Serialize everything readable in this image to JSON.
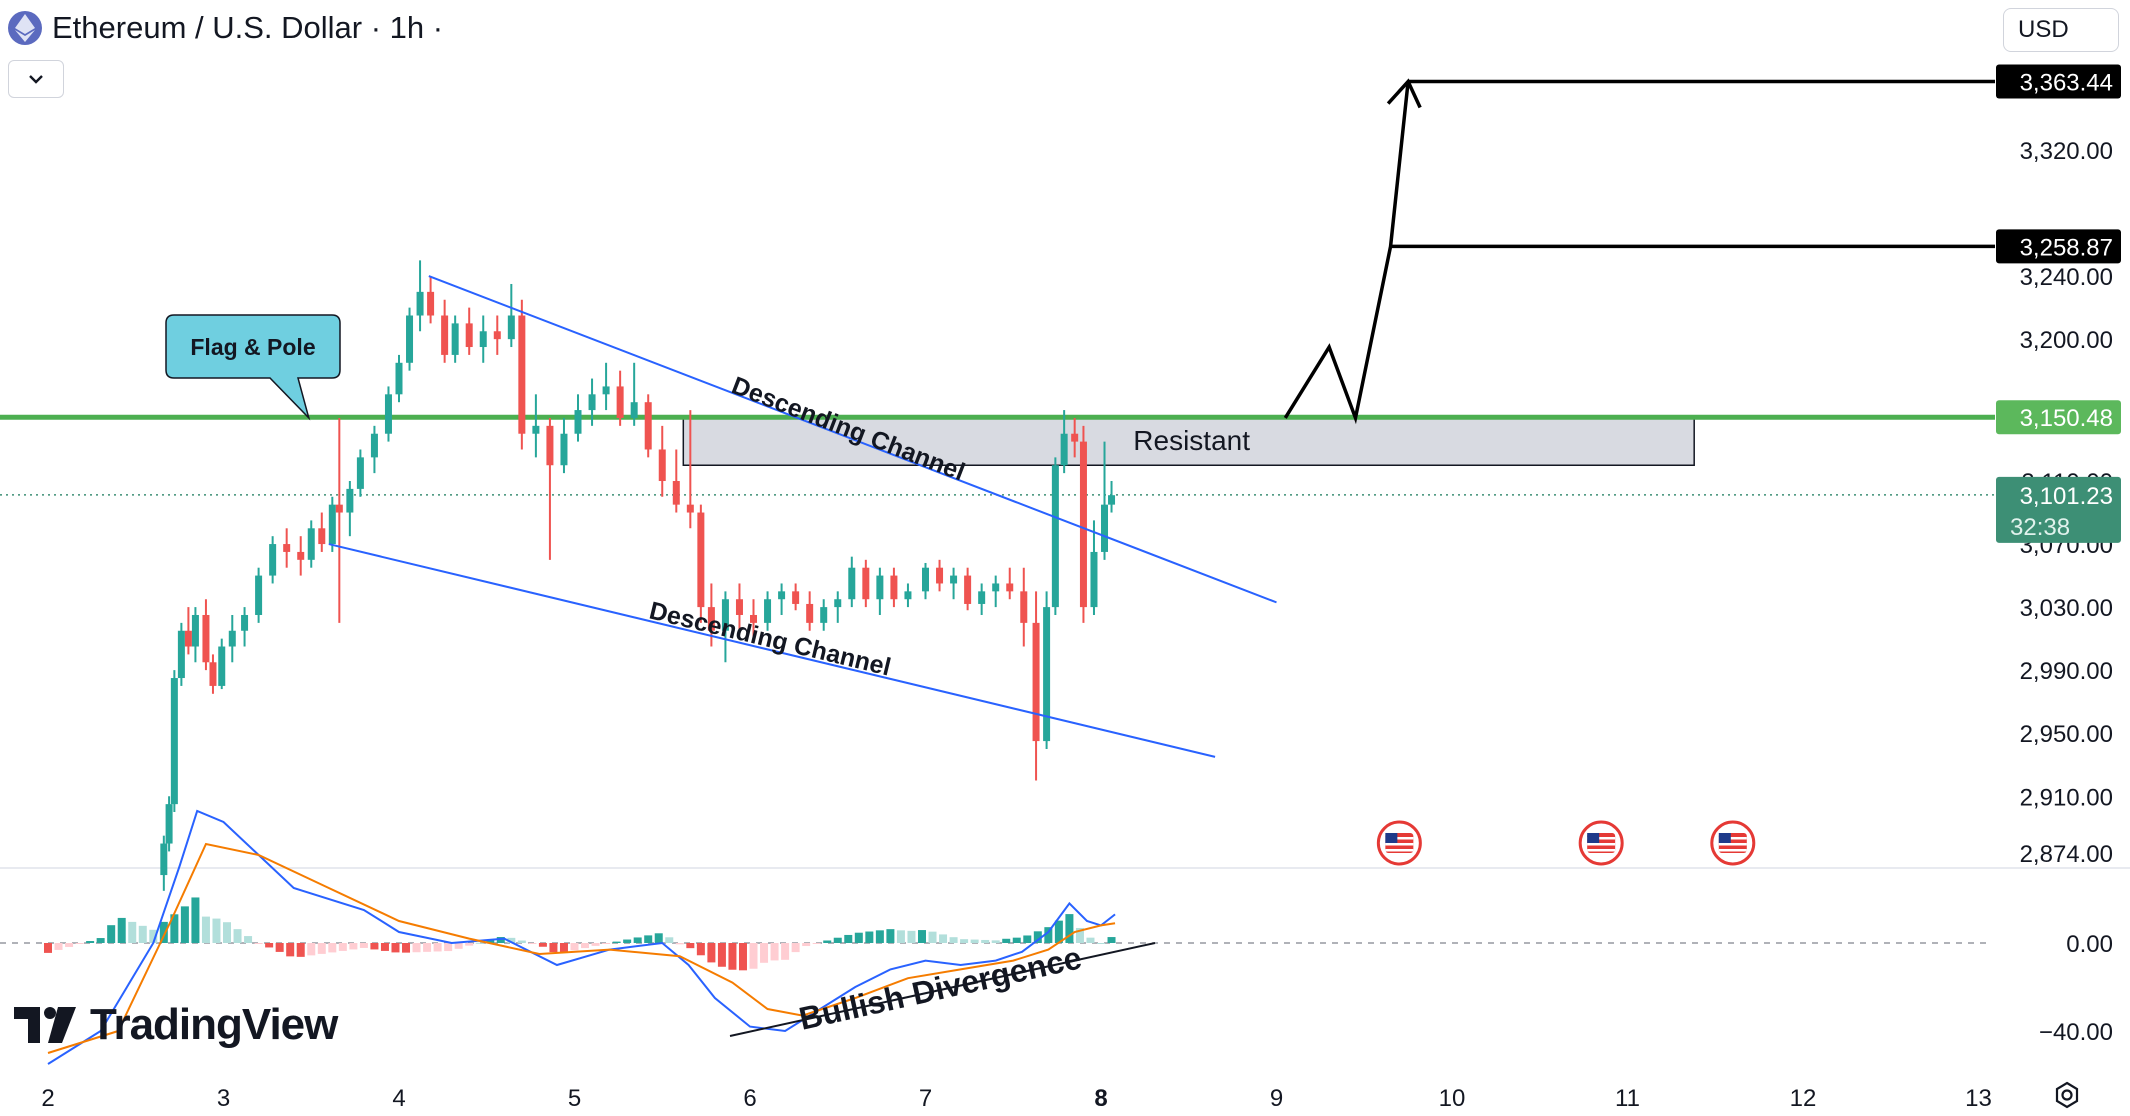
{
  "header": {
    "symbol_title": "Ethereum / U.S. Dollar · 1h ·",
    "icon": "ethereum-icon",
    "dropdown_icon": "chevron-down-icon"
  },
  "currency": {
    "selected": "USD"
  },
  "branding": {
    "logo_text": "TradingView"
  },
  "settings": {
    "icon": "settings-gear-icon"
  },
  "colors": {
    "up": "#26a69a",
    "down": "#ef5350",
    "accent_green": "#4caf50",
    "last_price_bg": "#3d8f75",
    "channel_line": "#2962ff",
    "macd_line": "#2962ff",
    "signal_line": "#f57c00"
  },
  "chart_data": {
    "type": "candlestick",
    "title": "Ethereum / U.S. Dollar · 1h ·",
    "x_tick_labels": [
      "2",
      "3",
      "4",
      "5",
      "6",
      "7",
      "8",
      "9",
      "10",
      "11",
      "12",
      "13"
    ],
    "x_days": [
      2,
      3,
      4,
      5,
      6,
      7,
      8,
      9,
      10,
      11,
      12,
      13
    ],
    "price_axis": {
      "ticks": [
        3320.0,
        3240.0,
        3200.0,
        3030.0,
        2990.0,
        2950.0,
        2910.0,
        2874.0
      ],
      "tick_labels": [
        "3,320.00",
        "3,240.00",
        "3,200.00",
        "3,030.00",
        "2,990.00",
        "2,950.00",
        "2,910.00",
        "2,874.00"
      ],
      "partially_hidden_ticks": [
        3110.0,
        3070.0
      ],
      "partially_hidden_labels": [
        "3,110.00",
        "3,070.00"
      ]
    },
    "price_labels": [
      {
        "value": 3363.44,
        "text": "3,363.44",
        "style": "black"
      },
      {
        "value": 3258.87,
        "text": "3,258.87",
        "style": "black"
      },
      {
        "value": 3150.48,
        "text": "3,150.48",
        "style": "green"
      }
    ],
    "last_price": {
      "value": 3101.23,
      "text": "3,101.23",
      "countdown": "32:38"
    },
    "candles_ohlc_approx": [
      [
        2.66,
        2860,
        2885,
        2850,
        2880
      ],
      [
        2.69,
        2880,
        2910,
        2875,
        2905
      ],
      [
        2.72,
        2905,
        2990,
        2900,
        2985
      ],
      [
        2.76,
        2985,
        3020,
        2980,
        3015
      ],
      [
        2.8,
        3015,
        3030,
        3000,
        3005
      ],
      [
        2.84,
        3005,
        3030,
        2995,
        3025
      ],
      [
        2.9,
        3025,
        3035,
        2990,
        2995
      ],
      [
        2.94,
        2995,
        3000,
        2975,
        2980
      ],
      [
        2.99,
        2980,
        3010,
        2978,
        3005
      ],
      [
        3.05,
        3005,
        3025,
        2995,
        3015
      ],
      [
        3.12,
        3015,
        3030,
        3005,
        3025
      ],
      [
        3.2,
        3025,
        3055,
        3020,
        3050
      ],
      [
        3.28,
        3050,
        3075,
        3045,
        3070
      ],
      [
        3.36,
        3070,
        3080,
        3055,
        3065
      ],
      [
        3.44,
        3065,
        3075,
        3050,
        3060
      ],
      [
        3.5,
        3060,
        3085,
        3055,
        3080
      ],
      [
        3.56,
        3080,
        3090,
        3065,
        3070
      ],
      [
        3.62,
        3070,
        3100,
        3065,
        3095
      ],
      [
        3.66,
        3095,
        3150,
        3020,
        3090
      ],
      [
        3.72,
        3090,
        3110,
        3075,
        3105
      ],
      [
        3.78,
        3105,
        3130,
        3100,
        3125
      ],
      [
        3.86,
        3125,
        3145,
        3115,
        3140
      ],
      [
        3.94,
        3140,
        3170,
        3135,
        3165
      ],
      [
        4.0,
        3165,
        3190,
        3160,
        3185
      ],
      [
        4.06,
        3185,
        3220,
        3180,
        3215
      ],
      [
        4.12,
        3215,
        3250,
        3205,
        3230
      ],
      [
        4.18,
        3230,
        3240,
        3210,
        3215
      ],
      [
        4.26,
        3215,
        3225,
        3185,
        3190
      ],
      [
        4.32,
        3190,
        3215,
        3185,
        3210
      ],
      [
        4.4,
        3210,
        3220,
        3190,
        3195
      ],
      [
        4.48,
        3195,
        3215,
        3185,
        3205
      ],
      [
        4.56,
        3205,
        3215,
        3190,
        3200
      ],
      [
        4.64,
        3200,
        3235,
        3195,
        3215
      ],
      [
        4.7,
        3215,
        3225,
        3130,
        3140
      ],
      [
        4.78,
        3140,
        3165,
        3125,
        3145
      ],
      [
        4.86,
        3145,
        3150,
        3060,
        3120
      ],
      [
        4.94,
        3120,
        3150,
        3115,
        3140
      ],
      [
        5.02,
        3140,
        3165,
        3135,
        3155
      ],
      [
        5.1,
        3155,
        3175,
        3145,
        3165
      ],
      [
        5.18,
        3165,
        3185,
        3155,
        3170
      ],
      [
        5.26,
        3170,
        3180,
        3145,
        3150
      ],
      [
        5.34,
        3150,
        3185,
        3145,
        3160
      ],
      [
        5.42,
        3160,
        3165,
        3125,
        3130
      ],
      [
        5.5,
        3130,
        3145,
        3100,
        3110
      ],
      [
        5.58,
        3110,
        3130,
        3090,
        3095
      ],
      [
        5.66,
        3095,
        3155,
        3080,
        3090
      ],
      [
        5.72,
        3090,
        3095,
        3020,
        3030
      ],
      [
        5.78,
        3030,
        3045,
        3005,
        3015
      ],
      [
        5.86,
        3015,
        3040,
        2995,
        3035
      ],
      [
        5.94,
        3035,
        3045,
        3015,
        3025
      ],
      [
        6.02,
        3025,
        3035,
        3010,
        3020
      ],
      [
        6.1,
        3020,
        3040,
        3015,
        3035
      ],
      [
        6.18,
        3035,
        3045,
        3025,
        3040
      ],
      [
        6.26,
        3040,
        3045,
        3028,
        3032
      ],
      [
        6.34,
        3032,
        3040,
        3015,
        3020
      ],
      [
        6.42,
        3020,
        3035,
        3015,
        3030
      ],
      [
        6.5,
        3030,
        3040,
        3020,
        3035
      ],
      [
        6.58,
        3035,
        3062,
        3030,
        3055
      ],
      [
        6.66,
        3055,
        3060,
        3030,
        3035
      ],
      [
        6.74,
        3035,
        3055,
        3025,
        3050
      ],
      [
        6.82,
        3050,
        3055,
        3030,
        3035
      ],
      [
        6.9,
        3035,
        3045,
        3030,
        3040
      ],
      [
        7.0,
        3040,
        3058,
        3035,
        3055
      ],
      [
        7.08,
        3055,
        3060,
        3040,
        3045
      ],
      [
        7.16,
        3045,
        3055,
        3035,
        3050
      ],
      [
        7.24,
        3050,
        3055,
        3028,
        3032
      ],
      [
        7.32,
        3032,
        3045,
        3025,
        3040
      ],
      [
        7.4,
        3040,
        3050,
        3030,
        3045
      ],
      [
        7.48,
        3045,
        3055,
        3035,
        3040
      ],
      [
        7.56,
        3040,
        3055,
        3005,
        3020
      ],
      [
        7.63,
        3020,
        3040,
        2920,
        2945
      ],
      [
        7.69,
        2945,
        3040,
        2940,
        3030
      ],
      [
        7.74,
        3030,
        3125,
        3025,
        3120
      ],
      [
        7.79,
        3120,
        3155,
        3115,
        3140
      ],
      [
        7.85,
        3140,
        3150,
        3125,
        3135
      ],
      [
        7.9,
        3135,
        3145,
        3020,
        3030
      ],
      [
        7.96,
        3030,
        3085,
        3025,
        3065
      ],
      [
        8.02,
        3065,
        3135,
        3060,
        3095
      ],
      [
        8.06,
        3095,
        3110,
        3090,
        3101
      ]
    ],
    "horizontal_lines": [
      {
        "value": 3150.48,
        "label": "3,150.48",
        "color": "#4caf50"
      }
    ],
    "resistance_zone": {
      "from_x": 5.62,
      "to_x": 11.38,
      "top": 3150.48,
      "bottom": 3120.0,
      "label": "Resistant"
    },
    "channel_lines": [
      {
        "from": [
          4.17,
          3240
        ],
        "to": [
          9.0,
          3033
        ],
        "label": "Descending Channel"
      },
      {
        "from": [
          3.6,
          3070
        ],
        "to": [
          8.65,
          2935
        ],
        "label": "Descending Channel"
      }
    ],
    "projection_path": [
      [
        9.05,
        3150
      ],
      [
        9.3,
        3195
      ],
      [
        9.45,
        3150
      ],
      [
        9.65,
        3258.87
      ],
      [
        9.75,
        3363.44
      ]
    ],
    "target_lines": [
      {
        "from_x": 9.75,
        "to_x": 13.0,
        "value": 3363.44
      },
      {
        "from_x": 9.65,
        "to_x": 13.0,
        "value": 3258.87
      }
    ],
    "callout": {
      "text": "Flag & Pole",
      "points_to": [
        3.6,
        3150
      ]
    },
    "event_markers": {
      "icon": "us-flag-icon",
      "x_days": [
        9.7,
        10.85,
        11.6
      ]
    },
    "macd": {
      "axis_ticks": [
        0,
        -40
      ],
      "axis_labels": [
        "0.00",
        "−40.00"
      ],
      "annotation": "Bullish Divergence",
      "macd_line": [
        [
          2.0,
          -55
        ],
        [
          2.3,
          -40
        ],
        [
          2.6,
          0
        ],
        [
          2.75,
          35
        ],
        [
          2.85,
          60
        ],
        [
          3.0,
          55
        ],
        [
          3.4,
          25
        ],
        [
          3.8,
          15
        ],
        [
          4.0,
          5
        ],
        [
          4.3,
          0
        ],
        [
          4.6,
          2
        ],
        [
          4.9,
          -10
        ],
        [
          5.2,
          -3
        ],
        [
          5.5,
          0
        ],
        [
          5.65,
          -10
        ],
        [
          5.8,
          -25
        ],
        [
          6.0,
          -38
        ],
        [
          6.2,
          -40
        ],
        [
          6.4,
          -30
        ],
        [
          6.6,
          -20
        ],
        [
          6.8,
          -12
        ],
        [
          7.0,
          -8
        ],
        [
          7.2,
          -10
        ],
        [
          7.4,
          -8
        ],
        [
          7.55,
          -4
        ],
        [
          7.7,
          5
        ],
        [
          7.82,
          18
        ],
        [
          7.92,
          10
        ],
        [
          8.0,
          8
        ],
        [
          8.08,
          13
        ]
      ],
      "signal_line": [
        [
          2.0,
          -50
        ],
        [
          2.4,
          -40
        ],
        [
          2.7,
          10
        ],
        [
          2.9,
          45
        ],
        [
          3.2,
          40
        ],
        [
          3.6,
          25
        ],
        [
          4.0,
          10
        ],
        [
          4.4,
          2
        ],
        [
          4.8,
          -5
        ],
        [
          5.2,
          -3
        ],
        [
          5.6,
          -6
        ],
        [
          5.9,
          -18
        ],
        [
          6.1,
          -30
        ],
        [
          6.3,
          -33
        ],
        [
          6.6,
          -25
        ],
        [
          6.9,
          -16
        ],
        [
          7.2,
          -12
        ],
        [
          7.5,
          -8
        ],
        [
          7.7,
          -3
        ],
        [
          7.85,
          5
        ],
        [
          8.0,
          8
        ],
        [
          8.08,
          9
        ]
      ],
      "histogram_note": "green bars positive, red bars negative"
    }
  }
}
